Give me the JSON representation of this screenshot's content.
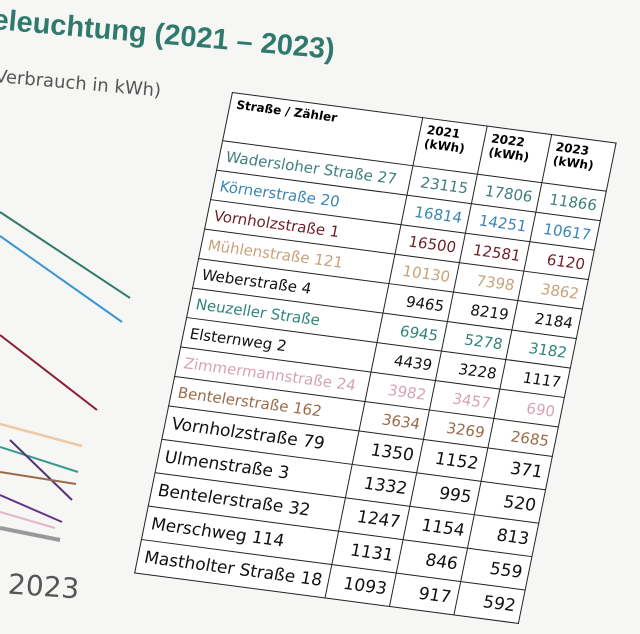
{
  "title": "eleuchtung (2021 – 2023)",
  "subtitle": "Verbrauch in kWh)",
  "chart_year_label": "2023",
  "table": {
    "headers": [
      "Straße / Zähler",
      "2021 (kWh)",
      "2022 (kWh)",
      "2023 (kWh)"
    ],
    "rows": [
      {
        "name": "Wadersloher Straße 27",
        "v2021": "23115",
        "v2022": "17806",
        "v2023": "11866",
        "color": "#3f7f7c"
      },
      {
        "name": "Körnerstraße 20",
        "v2021": "16814",
        "v2022": "14251",
        "v2023": "10617",
        "color": "#3a86b5"
      },
      {
        "name": "Vornholzstraße 1",
        "v2021": "16500",
        "v2022": "12581",
        "v2023": "6120",
        "color": "#6e1f2a"
      },
      {
        "name": "Mühlenstraße 121",
        "v2021": "10130",
        "v2022": "7398",
        "v2023": "3862",
        "color": "#c9a27a"
      },
      {
        "name": "Weberstraße 4",
        "v2021": "9465",
        "v2022": "8219",
        "v2023": "2184",
        "color": "#111111"
      },
      {
        "name": "Neuzeller Straße",
        "v2021": "6945",
        "v2022": "5278",
        "v2023": "3182",
        "color": "#2f857a"
      },
      {
        "name": "Elsternweg 2",
        "v2021": "4439",
        "v2022": "3228",
        "v2023": "1117",
        "color": "#111111"
      },
      {
        "name": "Zimmermannstraße 24",
        "v2021": "3982",
        "v2022": "3457",
        "v2023": "690",
        "color": "#d6a3b6"
      },
      {
        "name": "Bentelerstraße 162",
        "v2021": "3634",
        "v2022": "3269",
        "v2023": "2685",
        "color": "#9a6b48"
      },
      {
        "name": "Vornholzstraße 79",
        "v2021": "1350",
        "v2022": "1152",
        "v2023": "371",
        "color": "#111111"
      },
      {
        "name": "Ulmenstraße 3",
        "v2021": "1332",
        "v2022": "995",
        "v2023": "520",
        "color": "#111111"
      },
      {
        "name": "Bentelerstraße 32",
        "v2021": "1247",
        "v2022": "1154",
        "v2023": "813",
        "color": "#111111"
      },
      {
        "name": "Merschweg 114",
        "v2021": "1131",
        "v2022": "846",
        "v2023": "559",
        "color": "#111111"
      },
      {
        "name": "Mastholter Straße 18",
        "v2021": "1093",
        "v2022": "917",
        "v2023": "592",
        "color": "#111111"
      }
    ]
  }
}
